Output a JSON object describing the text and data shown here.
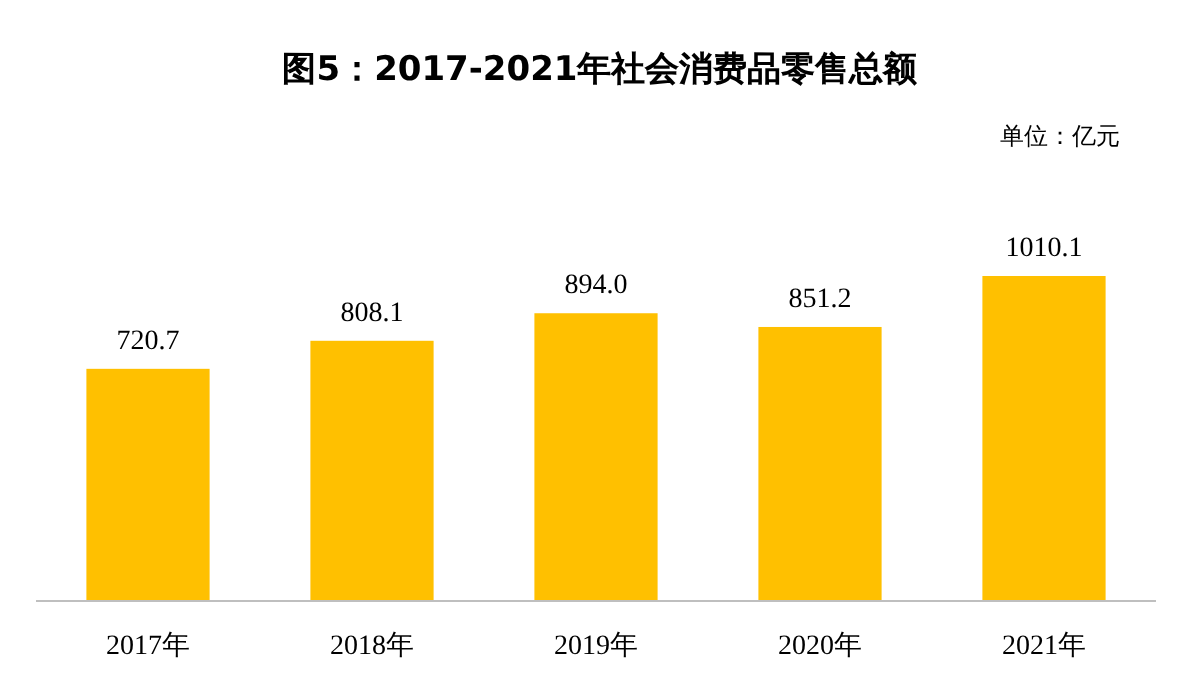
{
  "chart_data": {
    "type": "bar",
    "title": "图5：2017-2021年社会消费品零售总额",
    "annotations": [
      "单位：亿元"
    ],
    "categories": [
      "2017年",
      "2018年",
      "2019年",
      "2020年",
      "2021年"
    ],
    "values": [
      720.7,
      808.1,
      894.0,
      851.2,
      1010.1
    ],
    "value_labels": [
      "720.7",
      "808.1",
      "894.0",
      "851.2",
      "1010.1"
    ],
    "color": "#ffc000"
  }
}
